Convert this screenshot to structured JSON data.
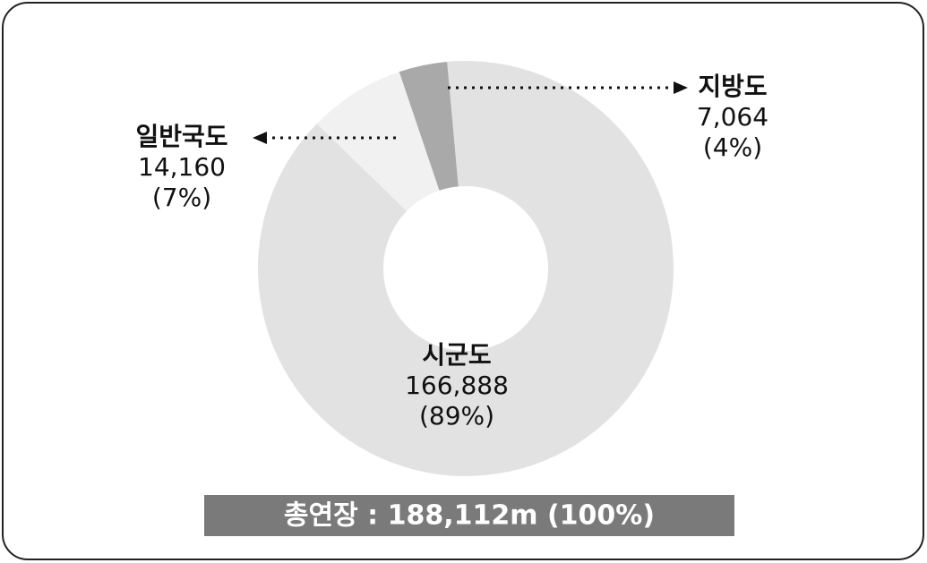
{
  "chart_data": {
    "type": "pie",
    "categories": [
      "시군도",
      "일반국도",
      "지방도"
    ],
    "values": [
      166888,
      14160,
      7064
    ],
    "value_labels": [
      "166,888",
      "14,160",
      "7,064"
    ],
    "percent_labels": [
      "(89%)",
      "(7%)",
      "(4%)"
    ],
    "colors": [
      "#e2e2e2",
      "#f1f1f1",
      "#a9a9a9"
    ],
    "total_label": "총연장 : 188,112m (100%)"
  }
}
